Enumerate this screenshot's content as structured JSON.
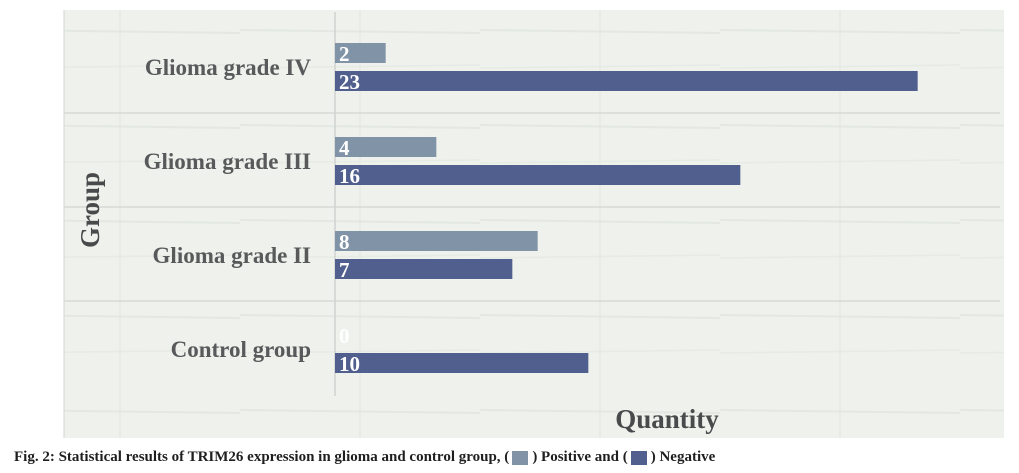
{
  "chart_data": {
    "type": "bar",
    "orientation": "horizontal",
    "title": "",
    "xlabel": "Quantity",
    "ylabel": "Group",
    "categories": [
      "Glioma grade IV",
      "Glioma grade III",
      "Glioma grade II",
      "Control group"
    ],
    "series": [
      {
        "name": "Positive",
        "color": "#8193a6",
        "values": [
          2,
          4,
          8,
          0
        ]
      },
      {
        "name": "Negative",
        "color": "#505f8e",
        "values": [
          23,
          16,
          7,
          10
        ]
      }
    ],
    "xlim": [
      0,
      25
    ],
    "grid": true,
    "legend": "caption"
  },
  "caption": {
    "prefix": "Fig. 2: Statistical results of TRIM26 expression in glioma and control group, (",
    "positive_text": ") Positive and (",
    "negative_text": ") Negative"
  }
}
